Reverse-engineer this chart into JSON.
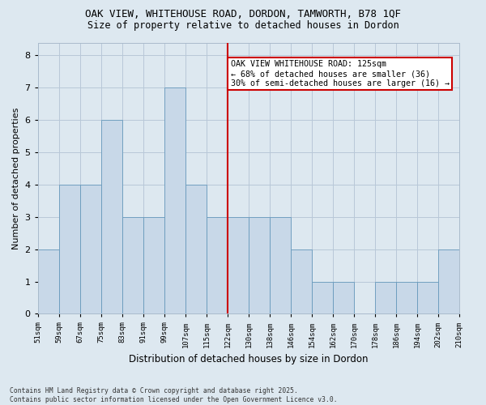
{
  "title": "OAK VIEW, WHITEHOUSE ROAD, DORDON, TAMWORTH, B78 1QF",
  "subtitle": "Size of property relative to detached houses in Dordon",
  "xlabel": "Distribution of detached houses by size in Dordon",
  "ylabel": "Number of detached properties",
  "footnote": "Contains HM Land Registry data © Crown copyright and database right 2025.\nContains public sector information licensed under the Open Government Licence v3.0.",
  "categories": [
    "51sqm",
    "59sqm",
    "67sqm",
    "75sqm",
    "83sqm",
    "91sqm",
    "99sqm",
    "107sqm",
    "115sqm",
    "122sqm",
    "130sqm",
    "138sqm",
    "146sqm",
    "154sqm",
    "162sqm",
    "170sqm",
    "178sqm",
    "186sqm",
    "194sqm",
    "202sqm",
    "210sqm"
  ],
  "values": [
    2,
    4,
    4,
    6,
    3,
    3,
    7,
    4,
    3,
    3,
    3,
    3,
    2,
    1,
    1,
    0,
    1,
    1,
    1,
    2,
    0
  ],
  "bar_color": "#c8d8e8",
  "bar_edge_color": "#6699bb",
  "grid_color": "#b8c8d8",
  "bg_color": "#dde8f0",
  "annotation_text": "OAK VIEW WHITEHOUSE ROAD: 125sqm\n← 68% of detached houses are smaller (36)\n30% of semi-detached houses are larger (16) →",
  "annotation_box_color": "#ffffff",
  "annotation_box_edge": "#cc0000",
  "property_line_color": "#cc0000",
  "ylim": [
    0,
    8.4
  ],
  "yticks": [
    0,
    1,
    2,
    3,
    4,
    5,
    6,
    7,
    8
  ]
}
